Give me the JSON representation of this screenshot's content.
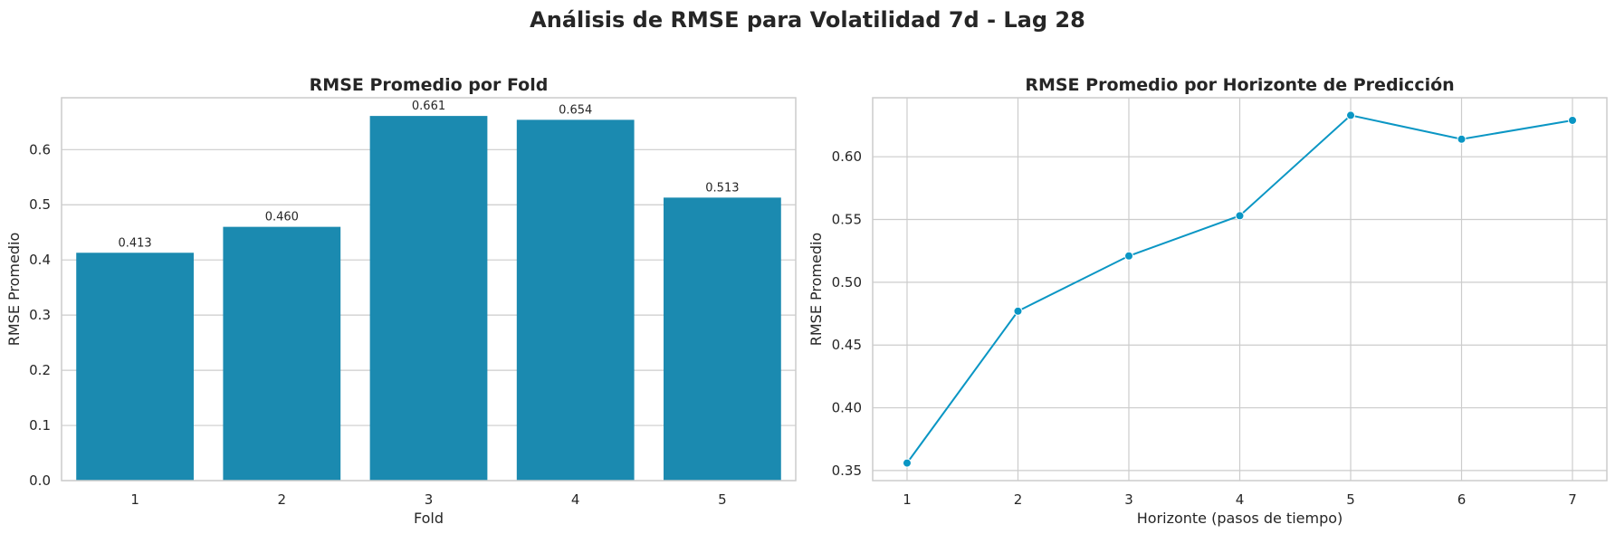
{
  "suptitle": "Análisis de RMSE para Volatilidad 7d - Lag 28",
  "chart_data": [
    {
      "type": "bar",
      "title": "RMSE Promedio por Fold",
      "xlabel": "Fold",
      "ylabel": "RMSE Promedio",
      "categories": [
        "1",
        "2",
        "3",
        "4",
        "5"
      ],
      "values": [
        0.413,
        0.46,
        0.661,
        0.654,
        0.513
      ],
      "value_labels": [
        "0.413",
        "0.460",
        "0.661",
        "0.654",
        "0.513"
      ],
      "ylim": [
        0,
        0.694
      ],
      "yticks": [
        0.0,
        0.1,
        0.2,
        0.3,
        0.4,
        0.5,
        0.6
      ],
      "ytick_labels": [
        "0.0",
        "0.1",
        "0.2",
        "0.3",
        "0.4",
        "0.5",
        "0.6"
      ],
      "color": "#1b8ab0",
      "grid": "horizontal"
    },
    {
      "type": "line",
      "title": "RMSE Promedio por Horizonte de Predicción",
      "xlabel": "Horizonte (pasos de tiempo)",
      "ylabel": "RMSE Promedio",
      "x": [
        1,
        2,
        3,
        4,
        5,
        6,
        7
      ],
      "xtick_labels": [
        "1",
        "2",
        "3",
        "4",
        "5",
        "6",
        "7"
      ],
      "y": [
        0.356,
        0.477,
        0.521,
        0.553,
        0.633,
        0.614,
        0.629
      ],
      "xlim": [
        0.69,
        7.31
      ],
      "ylim": [
        0.342,
        0.647
      ],
      "yticks": [
        0.35,
        0.4,
        0.45,
        0.5,
        0.55,
        0.6
      ],
      "ytick_labels": [
        "0.35",
        "0.40",
        "0.45",
        "0.50",
        "0.55",
        "0.60"
      ],
      "color": "#0a96c4",
      "marker": "circle",
      "grid": "both"
    }
  ]
}
